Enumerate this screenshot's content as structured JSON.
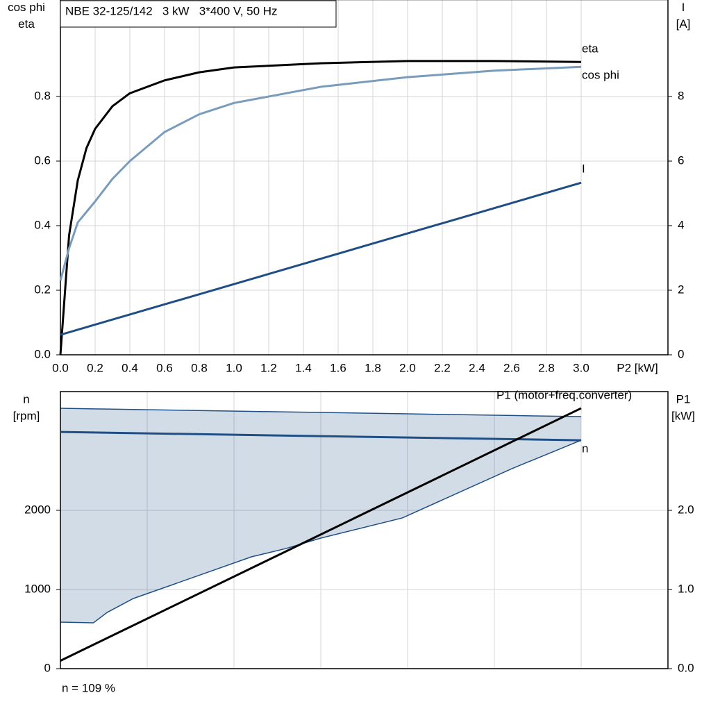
{
  "chart_data": [
    {
      "type": "line",
      "title": "NBE 32-125/142   3 kW   3*400 V, 50 Hz",
      "xlabel": "P2 [kW]",
      "ylabel": [
        "cos phi",
        "eta"
      ],
      "y2label": [
        "I",
        "[A]"
      ],
      "xlim": [
        0,
        3.5
      ],
      "ylim": [
        0,
        1.1
      ],
      "y2lim": [
        0,
        11
      ],
      "grid": true,
      "xticks": [
        {
          "value": 0,
          "label": "0.0"
        },
        0.2,
        0.4,
        0.6,
        0.8,
        {
          "value": 1,
          "label": "1.0"
        },
        1.2,
        1.4,
        1.6,
        1.8,
        {
          "value": 2,
          "label": "2.0"
        },
        2.2,
        2.4,
        2.6,
        2.8,
        {
          "value": 3,
          "label": "3.0"
        }
      ],
      "yticks": [
        {
          "value": 0,
          "label": "0.0"
        },
        0.2,
        0.4,
        0.6,
        0.8
      ],
      "y2ticks": [
        0,
        2,
        4,
        6,
        8
      ],
      "series": [
        {
          "name": "eta",
          "color": "#000000",
          "x": [
            0,
            0.05,
            0.1,
            0.15,
            0.2,
            0.3,
            0.4,
            0.6,
            0.8,
            1.0,
            1.5,
            2.0,
            2.5,
            3.0
          ],
          "values": [
            0,
            0.37,
            0.54,
            0.64,
            0.7,
            0.77,
            0.81,
            0.85,
            0.875,
            0.89,
            0.903,
            0.91,
            0.91,
            0.907
          ]
        },
        {
          "name": "cos phi",
          "color": "#7a9cbc",
          "x": [
            0,
            0.05,
            0.1,
            0.2,
            0.3,
            0.4,
            0.6,
            0.8,
            1.0,
            1.5,
            2.0,
            2.5,
            3.0
          ],
          "values": [
            0.23,
            0.33,
            0.41,
            0.475,
            0.545,
            0.6,
            0.69,
            0.745,
            0.78,
            0.83,
            0.86,
            0.88,
            0.892
          ]
        },
        {
          "name": "I",
          "color": "#1f4e85",
          "axis": "y2",
          "x": [
            0,
            3.0
          ],
          "values": [
            0.62,
            5.33
          ]
        }
      ]
    },
    {
      "type": "line",
      "ylabel": [
        "n",
        "[rpm]"
      ],
      "y2label": [
        "P1",
        "[kW]"
      ],
      "xlim": [
        0,
        3.5
      ],
      "ylim": [
        0,
        3500
      ],
      "y2lim": [
        0,
        3.5
      ],
      "grid": true,
      "xtick_labels": false,
      "xticks": [
        0,
        0.5,
        1,
        1.5,
        2,
        2.5,
        3
      ],
      "yticks": [
        0,
        1000,
        2000
      ],
      "y2ticks": [
        {
          "value": 0,
          "label": "0.0"
        },
        {
          "value": 1,
          "label": "1.0"
        },
        {
          "value": 2,
          "label": "2.0"
        }
      ],
      "band": {
        "color": "#1f4e85",
        "x": [
          0,
          0.19,
          0.27,
          0.42,
          1.1,
          1.3,
          1.5,
          1.97,
          2.6,
          3.0
        ],
        "upper": [
          3289,
          3282,
          3280,
          3274,
          3250,
          3243,
          3237,
          3220,
          3198,
          3184
        ],
        "lower": [
          588,
          579,
          711,
          886,
          1412,
          1518,
          1649,
          1904,
          2526,
          2886
        ]
      },
      "series": [
        {
          "name": "n",
          "color": "#1f4e85",
          "x": [
            0,
            3.0
          ],
          "values": [
            2990,
            2885
          ]
        },
        {
          "name": "P1 (motor+freq.converter)",
          "color": "#000000",
          "axis": "y2",
          "x": [
            0,
            3.0
          ],
          "values": [
            0.1,
            3.29
          ]
        }
      ],
      "note": "n = 109 %"
    }
  ]
}
